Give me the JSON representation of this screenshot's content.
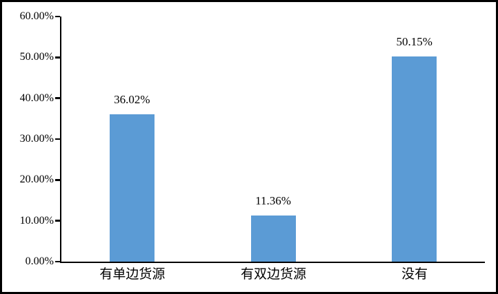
{
  "chart_data": {
    "type": "bar",
    "title": "",
    "xlabel": "",
    "ylabel": "",
    "categories": [
      "有单边货源",
      "有双边货源",
      "没有"
    ],
    "values": [
      36.02,
      11.36,
      50.15
    ],
    "value_labels": [
      "36.02%",
      "11.36%",
      "50.15%"
    ],
    "ylim": [
      0,
      60
    ],
    "y_ticks": [
      0,
      10,
      20,
      30,
      40,
      50,
      60
    ],
    "y_tick_labels": [
      "0.00%",
      "10.00%",
      "20.00%",
      "30.00%",
      "40.00%",
      "50.00%",
      "60.00%"
    ],
    "grid": false,
    "legend": false,
    "colors": {
      "bar": "#5B9BD5",
      "axis": "#000000",
      "text": "#000000",
      "background": "#FFFFFF",
      "outer_border": "#000000"
    }
  }
}
